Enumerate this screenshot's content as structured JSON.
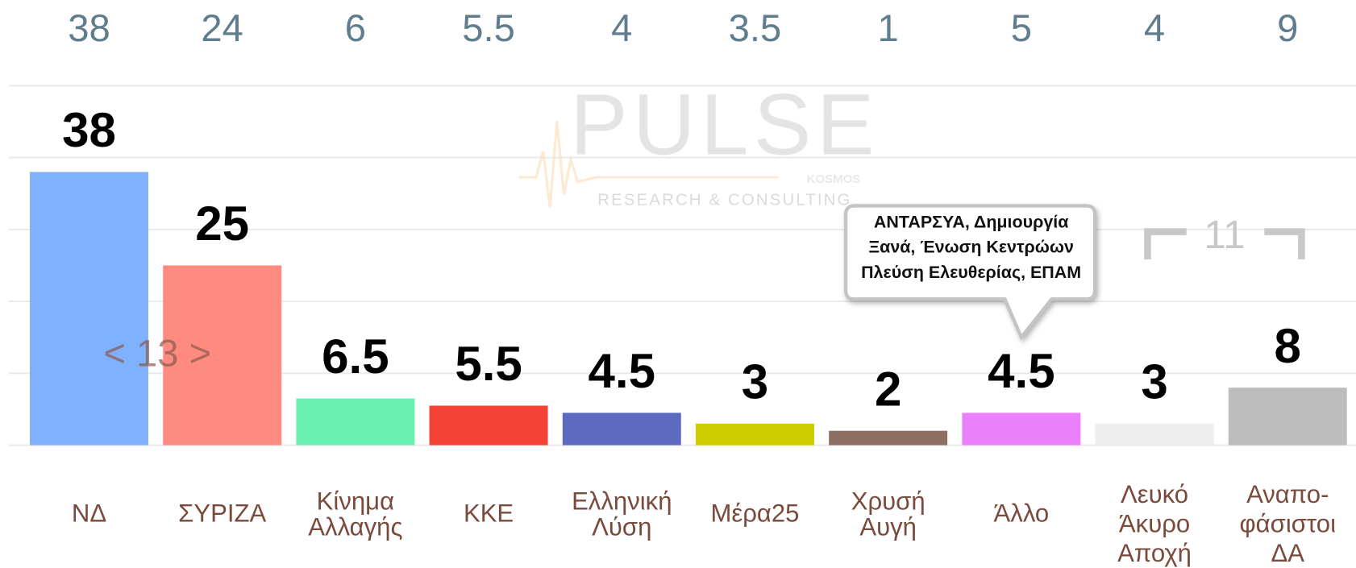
{
  "chart_data": {
    "type": "bar",
    "categories": [
      [
        "ΝΔ"
      ],
      [
        "ΣΥΡΙΖΑ"
      ],
      [
        "Κίνημα",
        "Αλλαγής"
      ],
      [
        "ΚΚΕ"
      ],
      [
        "Ελληνική",
        "Λύση"
      ],
      [
        "Μέρα25"
      ],
      [
        "Χρυσή",
        "Αυγή"
      ],
      [
        "Άλλο"
      ],
      [
        "Λευκό",
        "Άκυρο",
        "Αποχή"
      ],
      [
        "Αναπο-",
        "φάσιστοι",
        "ΔΑ"
      ]
    ],
    "values": [
      38,
      25,
      6.5,
      5.5,
      4.5,
      3,
      2,
      4.5,
      3,
      8
    ],
    "previous_values": [
      38,
      24,
      6,
      5.5,
      4,
      3.5,
      1,
      5,
      4,
      9
    ],
    "colors": [
      "#80b1ff",
      "#ff8a80",
      "#69f0ae",
      "#f44336",
      "#5c6bc0",
      "#cdcd00",
      "#8d6e63",
      "#ea80fc",
      "#eeeeee",
      "#bdbdbd"
    ],
    "ylim": [
      0,
      50
    ],
    "yticks": [
      0,
      10,
      20,
      30,
      40,
      50
    ],
    "grid": true,
    "annotations": {
      "left_bracket": "< 13 >",
      "right_bracket": "11",
      "tooltip": [
        "ΑΝΤΑΡΣΥΑ,  Δημιουργία",
        "Ξανά,  Ένωση Κεντρώων",
        "Πλεύση Ελευθερίας, ΕΠΑΜ"
      ]
    },
    "watermark": {
      "brand": "PULSE",
      "tagline": "RESEARCH & CONSULTING",
      "partner": "KOSMOS"
    }
  }
}
